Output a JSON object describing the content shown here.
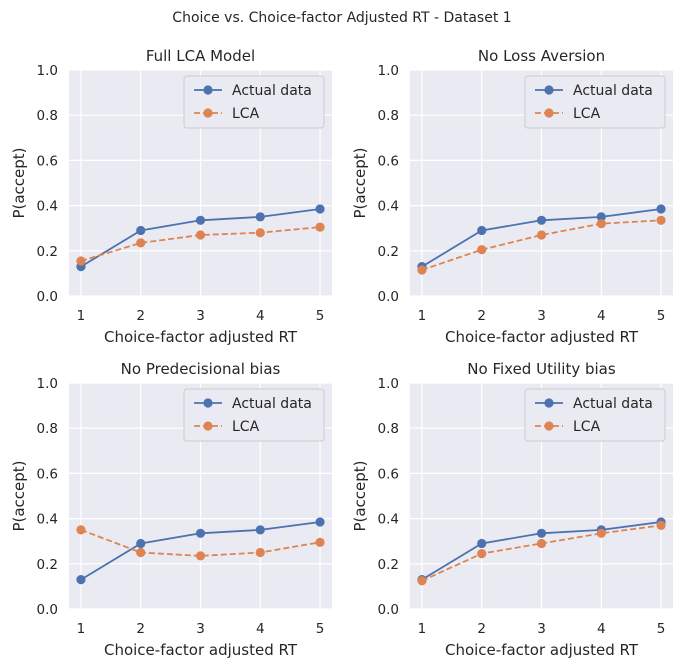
{
  "figure": {
    "suptitle": "Choice vs. Choice-factor Adjusted RT - Dataset 1"
  },
  "chart_data": [
    {
      "type": "line",
      "title": "Full LCA Model",
      "xlabel": "Choice-factor adjusted RT",
      "ylabel": "P(accept)",
      "x": [
        1,
        2,
        3,
        4,
        5
      ],
      "xlim": [
        0.8,
        5.2
      ],
      "ylim": [
        0,
        1
      ],
      "yticks": [
        "0.0",
        "0.2",
        "0.4",
        "0.6",
        "0.8",
        "1.0"
      ],
      "xticks": [
        "1",
        "2",
        "3",
        "4",
        "5"
      ],
      "legend": "top-right",
      "grid": true,
      "series": [
        {
          "name": "Actual data",
          "style": "solid",
          "color": "#4c72b0",
          "values": [
            0.13,
            0.29,
            0.335,
            0.35,
            0.385
          ]
        },
        {
          "name": "LCA",
          "style": "dashed",
          "color": "#dd8452",
          "values": [
            0.155,
            0.235,
            0.27,
            0.28,
            0.305
          ]
        }
      ]
    },
    {
      "type": "line",
      "title": "No Loss Aversion",
      "xlabel": "Choice-factor adjusted RT",
      "ylabel": "P(accept)",
      "x": [
        1,
        2,
        3,
        4,
        5
      ],
      "xlim": [
        0.8,
        5.2
      ],
      "ylim": [
        0,
        1
      ],
      "yticks": [
        "0.0",
        "0.2",
        "0.4",
        "0.6",
        "0.8",
        "1.0"
      ],
      "xticks": [
        "1",
        "2",
        "3",
        "4",
        "5"
      ],
      "legend": "top-right",
      "grid": true,
      "series": [
        {
          "name": "Actual data",
          "style": "solid",
          "color": "#4c72b0",
          "values": [
            0.13,
            0.29,
            0.335,
            0.35,
            0.385
          ]
        },
        {
          "name": "LCA",
          "style": "dashed",
          "color": "#dd8452",
          "values": [
            0.115,
            0.205,
            0.27,
            0.32,
            0.335
          ]
        }
      ]
    },
    {
      "type": "line",
      "title": "No Predecisional bias",
      "xlabel": "Choice-factor adjusted RT",
      "ylabel": "P(accept)",
      "x": [
        1,
        2,
        3,
        4,
        5
      ],
      "xlim": [
        0.8,
        5.2
      ],
      "ylim": [
        0,
        1
      ],
      "yticks": [
        "0.0",
        "0.2",
        "0.4",
        "0.6",
        "0.8",
        "1.0"
      ],
      "xticks": [
        "1",
        "2",
        "3",
        "4",
        "5"
      ],
      "legend": "top-right",
      "grid": true,
      "series": [
        {
          "name": "Actual data",
          "style": "solid",
          "color": "#4c72b0",
          "values": [
            0.13,
            0.29,
            0.335,
            0.35,
            0.385
          ]
        },
        {
          "name": "LCA",
          "style": "dashed",
          "color": "#dd8452",
          "values": [
            0.35,
            0.25,
            0.235,
            0.25,
            0.295
          ]
        }
      ]
    },
    {
      "type": "line",
      "title": "No Fixed Utility bias",
      "xlabel": "Choice-factor adjusted RT",
      "ylabel": "P(accept)",
      "x": [
        1,
        2,
        3,
        4,
        5
      ],
      "xlim": [
        0.8,
        5.2
      ],
      "ylim": [
        0,
        1
      ],
      "yticks": [
        "0.0",
        "0.2",
        "0.4",
        "0.6",
        "0.8",
        "1.0"
      ],
      "xticks": [
        "1",
        "2",
        "3",
        "4",
        "5"
      ],
      "legend": "top-right",
      "grid": true,
      "series": [
        {
          "name": "Actual data",
          "style": "solid",
          "color": "#4c72b0",
          "values": [
            0.13,
            0.29,
            0.335,
            0.35,
            0.385
          ]
        },
        {
          "name": "LCA",
          "style": "dashed",
          "color": "#dd8452",
          "values": [
            0.125,
            0.245,
            0.29,
            0.335,
            0.37
          ]
        }
      ]
    }
  ]
}
